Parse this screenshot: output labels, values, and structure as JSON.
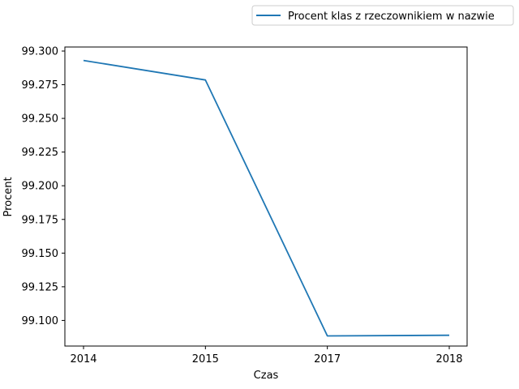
{
  "chart_data": {
    "type": "line",
    "title": "",
    "xlabel": "Czas",
    "ylabel": "Procent",
    "categories": [
      "2014",
      "2015",
      "2017",
      "2018"
    ],
    "series": [
      {
        "name": "Procent klas z rzeczownikiem w nazwie",
        "color": "#1f77b4",
        "values": [
          99.293,
          99.2785,
          99.0885,
          99.089
        ]
      }
    ],
    "ylim": [
      99.081,
      99.303
    ],
    "yticks": [
      "99.100",
      "99.125",
      "99.150",
      "99.175",
      "99.200",
      "99.225",
      "99.250",
      "99.275",
      "99.300"
    ],
    "grid": false,
    "legend_position": "top-right, outside plot area"
  }
}
